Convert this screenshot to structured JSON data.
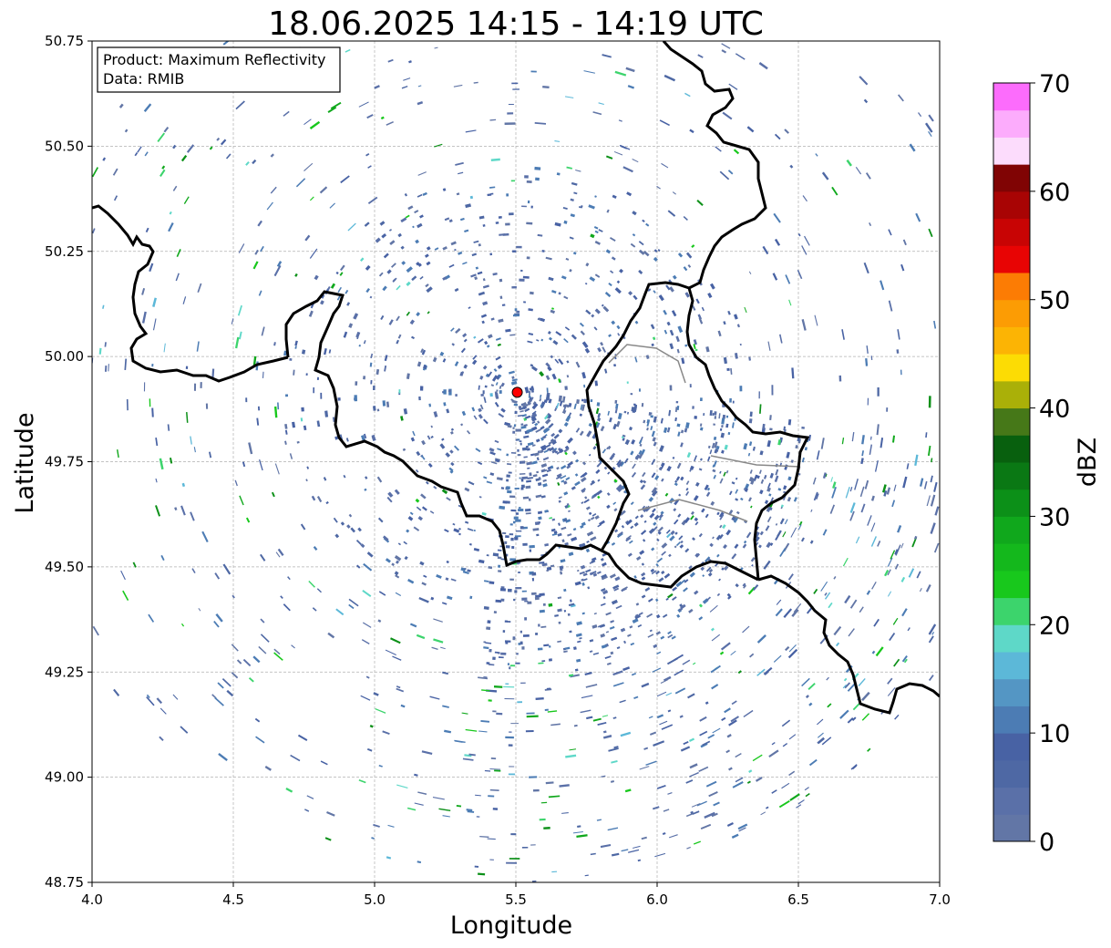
{
  "title": "18.06.2025 14:15 - 14:19 UTC",
  "info_box": {
    "line1": "Product: Maximum Reflectivity",
    "line2": "Data: RMIB"
  },
  "axes": {
    "xlabel": "Longitude",
    "ylabel": "Latitude",
    "xlim": [
      4.0,
      7.0
    ],
    "ylim": [
      48.75,
      50.75
    ],
    "xticks": [
      "4.0",
      "4.5",
      "5.0",
      "5.5",
      "6.0",
      "6.5",
      "7.0"
    ],
    "yticks": [
      "48.75",
      "49.00",
      "49.25",
      "49.50",
      "49.75",
      "50.00",
      "50.25",
      "50.50",
      "50.75"
    ],
    "grid": true
  },
  "radar_site": {
    "lon": 5.505,
    "lat": 49.915,
    "color": "#ff0000"
  },
  "colorbar": {
    "label": "dBZ",
    "min": 0,
    "max": 70,
    "step": 2.5,
    "ticks": [
      "0",
      "10",
      "20",
      "30",
      "40",
      "50",
      "60",
      "70"
    ],
    "colors": [
      "#6276a6",
      "#5a70a8",
      "#4e68a4",
      "#4862a4",
      "#4c7cb4",
      "#5496c4",
      "#5cb8d8",
      "#5ed8c8",
      "#3cd46c",
      "#18c81c",
      "#14b81c",
      "#10a81c",
      "#0c9018",
      "#0a7814",
      "#08600e",
      "#467818",
      "#aab008",
      "#fcdc04",
      "#fcb404",
      "#fc9c04",
      "#fc7c04",
      "#e80404",
      "#c80404",
      "#a80404",
      "#800404",
      "#fcdcfc",
      "#fcacfc",
      "#fc6cfc",
      "#ec34ec"
    ]
  },
  "map_colors": {
    "echo_base": "#5a6ea6",
    "border": "#000000",
    "minor_border": "#888888"
  }
}
